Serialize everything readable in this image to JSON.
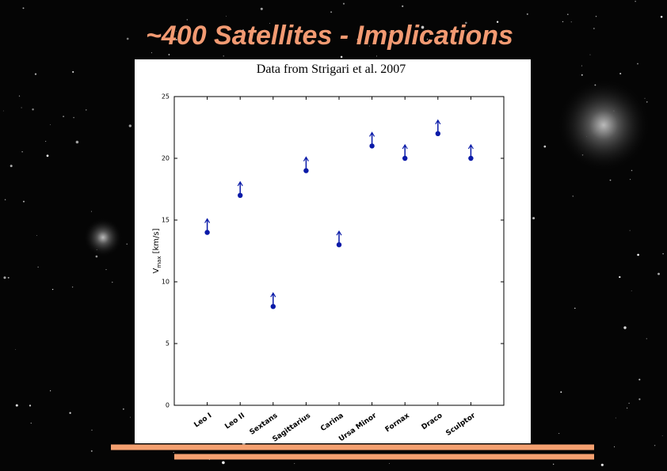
{
  "slide_title": "~400 Satellites - Implications",
  "chart_data": {
    "type": "scatter",
    "subtitle": "Data from Strigari et al. 2007",
    "ylabel": {
      "main": "V",
      "sub": "max",
      "rest": "[km/s]"
    },
    "categories": [
      "Leo I",
      "Leo II",
      "Sextans",
      "Sagittarius",
      "Carina",
      "Ursa Minor",
      "Fornax",
      "Draco",
      "Sculptor"
    ],
    "values": [
      14,
      17,
      8,
      19,
      13,
      21,
      20,
      22,
      20
    ],
    "lower_limits": true,
    "color": "#0a1aa8",
    "ylim": [
      0,
      25
    ],
    "yticks": [
      0,
      5,
      10,
      15,
      20,
      25
    ]
  }
}
